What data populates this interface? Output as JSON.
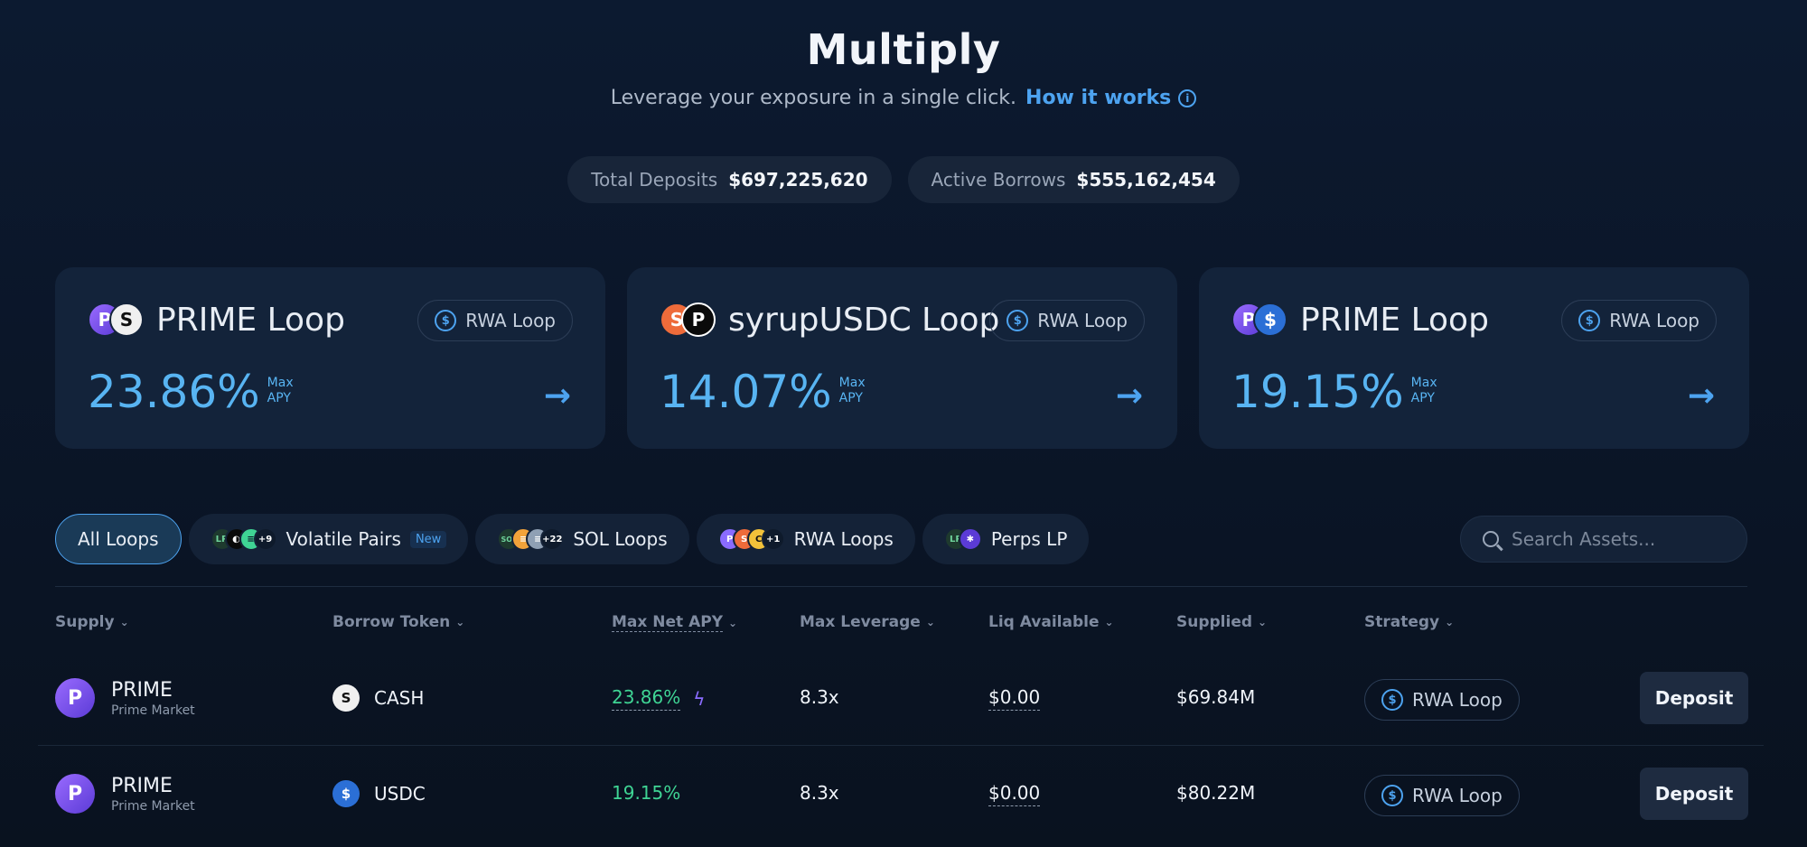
{
  "header": {
    "title": "Multiply",
    "subtitle": "Leverage your exposure in a single click.",
    "how_link": "How it works"
  },
  "stats": [
    {
      "label": "Total Deposits",
      "value": "$697,225,620"
    },
    {
      "label": "Active Borrows",
      "value": "$555,162,454"
    }
  ],
  "cards": [
    {
      "name": "PRIME Loop",
      "tag": "RWA Loop",
      "apy": "23.86%",
      "apy_label_1": "Max",
      "apy_label_2": "APY",
      "coins": [
        "prime-icon",
        "cash-icon"
      ]
    },
    {
      "name": "syrupUSDC Loop",
      "tag": "RWA Loop",
      "apy": "14.07%",
      "apy_label_1": "Max",
      "apy_label_2": "APY",
      "coins": [
        "syrup-icon",
        "pendle-icon"
      ]
    },
    {
      "name": "PRIME Loop",
      "tag": "RWA Loop",
      "apy": "19.15%",
      "apy_label_1": "Max",
      "apy_label_2": "APY",
      "coins": [
        "prime-icon",
        "usdc-icon"
      ]
    }
  ],
  "filters": {
    "all": "All Loops",
    "volatile": {
      "label": "Volatile Pairs",
      "badge": "New",
      "more": "+9",
      "lp": "LP"
    },
    "sol": {
      "label": "SOL Loops",
      "more": "+22",
      "lp": "SOL"
    },
    "rwa": {
      "label": "RWA Loops",
      "more": "+1"
    },
    "perps": {
      "label": "Perps LP",
      "lp": "LP"
    }
  },
  "search": {
    "placeholder": "Search Assets..."
  },
  "columns": {
    "supply": "Supply",
    "borrow": "Borrow Token",
    "apy": "Max Net APY",
    "leverage": "Max Leverage",
    "liq": "Liq Available",
    "supplied": "Supplied",
    "strategy": "Strategy"
  },
  "rows": [
    {
      "asset": "PRIME",
      "market": "Prime Market",
      "borrow": "CASH",
      "apy": "23.86%",
      "leverage": "8.3x",
      "liq": "$0.00",
      "supplied": "$69.84M",
      "strategy": "RWA Loop",
      "action": "Deposit"
    },
    {
      "asset": "PRIME",
      "market": "Prime Market",
      "borrow": "USDC",
      "apy": "19.15%",
      "leverage": "8.3x",
      "liq": "$0.00",
      "supplied": "$80.22M",
      "strategy": "RWA Loop",
      "action": "Deposit"
    }
  ],
  "colors": {
    "accent": "#4da3f0",
    "green": "#3fd494",
    "background": "#0b1629"
  }
}
